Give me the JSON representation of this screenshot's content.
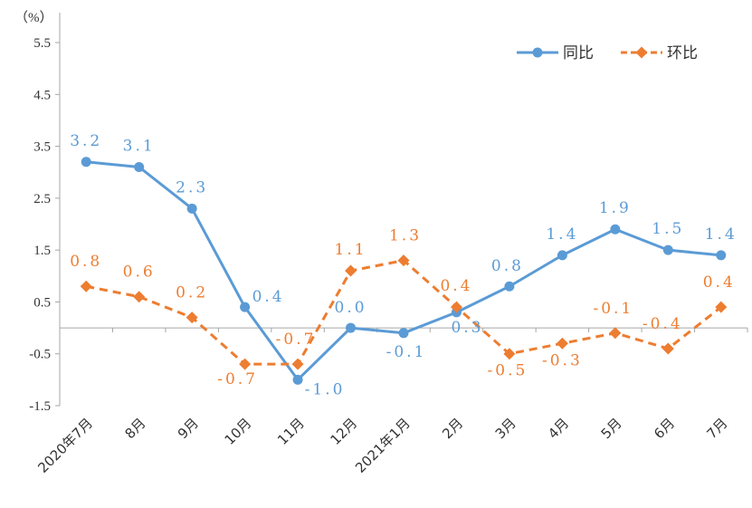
{
  "chart_data": {
    "type": "line",
    "unit_label": "（%）",
    "categories": [
      "2020年7月",
      "8月",
      "9月",
      "10月",
      "11月",
      "12月",
      "2021年1月",
      "2月",
      "3月",
      "4月",
      "5月",
      "6月",
      "7月"
    ],
    "ylim": [
      -1.5,
      5.5
    ],
    "yticks": [
      "5.5",
      "4.5",
      "3.5",
      "2.5",
      "1.5",
      "0.5",
      "-0.5",
      "-1.5"
    ],
    "grid": false,
    "legend_position": "top-right",
    "series": [
      {
        "name": "同比",
        "color": "#5b9bd5",
        "dash": "solid",
        "marker": "circle",
        "values": [
          3.2,
          3.1,
          2.3,
          0.4,
          -1.0,
          0.0,
          -0.1,
          0.3,
          0.8,
          1.4,
          1.9,
          1.5,
          1.4
        ],
        "labels": [
          "3.2",
          "3.1",
          "2.3",
          "0.4",
          "-1.0",
          "0.0",
          "-0.1",
          "0.3",
          "0.8",
          "1.4",
          "1.9",
          "1.5",
          "1.4"
        ]
      },
      {
        "name": "环比",
        "color": "#ed7d31",
        "dash": "dashed",
        "marker": "diamond",
        "values": [
          0.8,
          0.6,
          0.2,
          -0.7,
          -0.7,
          1.1,
          1.3,
          0.4,
          -0.5,
          -0.3,
          -0.1,
          -0.4,
          0.4
        ],
        "labels": [
          "0.8",
          "0.6",
          "0.2",
          "-0.7",
          "-0.7",
          "1.1",
          "1.3",
          "0.4",
          "-0.5",
          "-0.3",
          "-0.1",
          "-0.4",
          "0.4"
        ]
      }
    ]
  }
}
